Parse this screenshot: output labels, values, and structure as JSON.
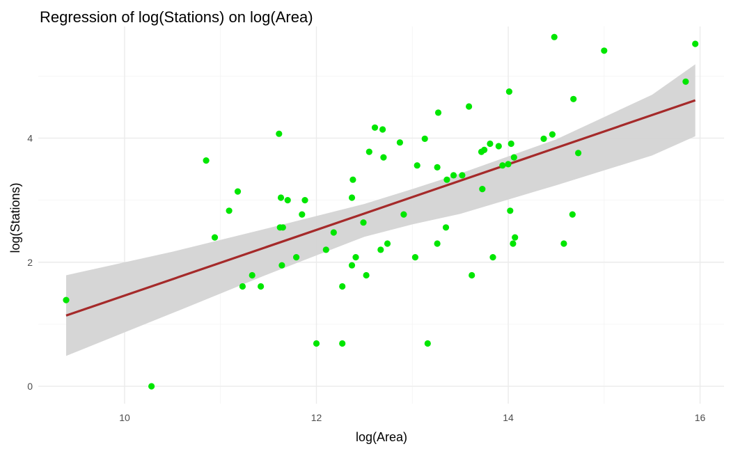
{
  "chart_data": {
    "type": "scatter",
    "title": "Regression of log(Stations) on log(Area)",
    "xlabel": "log(Area)",
    "ylabel": "log(Stations)",
    "xlim": [
      9.1,
      16.25
    ],
    "ylim": [
      -0.28,
      5.8
    ],
    "x_ticks": [
      10,
      12,
      14,
      16
    ],
    "x_tick_labels": [
      "10",
      "12",
      "14",
      "16"
    ],
    "y_ticks": [
      0,
      2,
      4
    ],
    "y_tick_labels": [
      "0",
      "2",
      "4"
    ],
    "x_minor_ticks": [
      11,
      13,
      15
    ],
    "y_minor_ticks": [
      1,
      3,
      5
    ],
    "grid": true,
    "points": [
      {
        "x": 9.39,
        "y": 1.39
      },
      {
        "x": 10.28,
        "y": 0.0
      },
      {
        "x": 10.85,
        "y": 3.64
      },
      {
        "x": 10.94,
        "y": 2.4
      },
      {
        "x": 11.09,
        "y": 2.83
      },
      {
        "x": 11.18,
        "y": 3.14
      },
      {
        "x": 11.23,
        "y": 1.61
      },
      {
        "x": 11.33,
        "y": 1.79
      },
      {
        "x": 11.42,
        "y": 1.61
      },
      {
        "x": 11.61,
        "y": 4.07
      },
      {
        "x": 11.63,
        "y": 3.04
      },
      {
        "x": 11.62,
        "y": 2.56
      },
      {
        "x": 11.65,
        "y": 2.56
      },
      {
        "x": 11.64,
        "y": 1.95
      },
      {
        "x": 11.7,
        "y": 3.0
      },
      {
        "x": 11.79,
        "y": 2.08
      },
      {
        "x": 11.85,
        "y": 2.77
      },
      {
        "x": 11.88,
        "y": 3.0
      },
      {
        "x": 12.0,
        "y": 0.69
      },
      {
        "x": 12.1,
        "y": 2.2
      },
      {
        "x": 12.18,
        "y": 2.48
      },
      {
        "x": 12.27,
        "y": 0.69
      },
      {
        "x": 12.27,
        "y": 1.61
      },
      {
        "x": 12.37,
        "y": 3.04
      },
      {
        "x": 12.38,
        "y": 3.33
      },
      {
        "x": 12.37,
        "y": 1.95
      },
      {
        "x": 12.41,
        "y": 2.08
      },
      {
        "x": 12.49,
        "y": 2.64
      },
      {
        "x": 12.52,
        "y": 1.79
      },
      {
        "x": 12.55,
        "y": 3.78
      },
      {
        "x": 12.61,
        "y": 4.17
      },
      {
        "x": 12.69,
        "y": 4.14
      },
      {
        "x": 12.67,
        "y": 2.2
      },
      {
        "x": 12.7,
        "y": 3.69
      },
      {
        "x": 12.74,
        "y": 2.3
      },
      {
        "x": 12.87,
        "y": 3.93
      },
      {
        "x": 12.91,
        "y": 2.77
      },
      {
        "x": 13.03,
        "y": 2.08
      },
      {
        "x": 13.05,
        "y": 3.56
      },
      {
        "x": 13.13,
        "y": 3.99
      },
      {
        "x": 13.16,
        "y": 0.69
      },
      {
        "x": 13.26,
        "y": 2.3
      },
      {
        "x": 13.26,
        "y": 3.53
      },
      {
        "x": 13.27,
        "y": 4.41
      },
      {
        "x": 13.35,
        "y": 2.56
      },
      {
        "x": 13.36,
        "y": 3.33
      },
      {
        "x": 13.43,
        "y": 3.4
      },
      {
        "x": 13.52,
        "y": 3.4
      },
      {
        "x": 13.59,
        "y": 4.51
      },
      {
        "x": 13.62,
        "y": 1.79
      },
      {
        "x": 13.72,
        "y": 3.78
      },
      {
        "x": 13.73,
        "y": 3.18
      },
      {
        "x": 13.75,
        "y": 3.81
      },
      {
        "x": 13.81,
        "y": 3.91
      },
      {
        "x": 13.84,
        "y": 2.08
      },
      {
        "x": 13.9,
        "y": 3.87
      },
      {
        "x": 13.94,
        "y": 3.56
      },
      {
        "x": 14.0,
        "y": 3.58
      },
      {
        "x": 14.01,
        "y": 4.75
      },
      {
        "x": 14.02,
        "y": 2.83
      },
      {
        "x": 14.03,
        "y": 3.91
      },
      {
        "x": 14.05,
        "y": 2.3
      },
      {
        "x": 14.06,
        "y": 3.69
      },
      {
        "x": 14.07,
        "y": 2.4
      },
      {
        "x": 14.37,
        "y": 3.99
      },
      {
        "x": 14.46,
        "y": 4.06
      },
      {
        "x": 14.48,
        "y": 5.63
      },
      {
        "x": 14.58,
        "y": 2.3
      },
      {
        "x": 14.67,
        "y": 2.77
      },
      {
        "x": 14.68,
        "y": 4.63
      },
      {
        "x": 14.73,
        "y": 3.76
      },
      {
        "x": 15.0,
        "y": 5.41
      },
      {
        "x": 15.85,
        "y": 4.91
      },
      {
        "x": 15.95,
        "y": 5.52
      }
    ],
    "fit_line": {
      "x": [
        9.39,
        15.95
      ],
      "y": [
        1.14,
        4.61
      ]
    },
    "confidence_band": {
      "x": [
        9.39,
        10.5,
        11.5,
        12.5,
        13.0,
        13.5,
        14.5,
        15.5,
        15.95
      ],
      "upper": [
        1.79,
        2.17,
        2.55,
        2.94,
        3.18,
        3.43,
        3.98,
        4.7,
        5.19
      ],
      "lower": [
        0.49,
        1.18,
        1.81,
        2.41,
        2.61,
        2.78,
        3.24,
        3.72,
        4.03
      ]
    },
    "colors": {
      "points": "#00e600",
      "fit_line": "#a52a2a",
      "band": "#d4d4d4",
      "grid": "#ebebeb"
    }
  }
}
